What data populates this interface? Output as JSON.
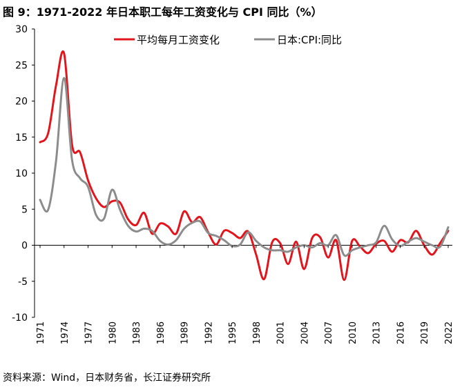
{
  "title": "图 9：1971-2022 年日本职工每年工资变化与 CPI 同比（%）",
  "source": "资料来源：Wind，日本财务省，长江证券研究所",
  "colors": {
    "wage": "#e3141b",
    "cpi": "#8c8c8c",
    "axis": "#000000"
  },
  "chart_data": {
    "type": "line",
    "title": "1971-2022 年日本职工每年工资变化与 CPI 同比（%）",
    "xlabel": "",
    "ylabel": "",
    "ylim": [
      -10,
      30
    ],
    "yticks": [
      "30",
      "25",
      "20",
      "15",
      "10",
      "5",
      "0",
      "-5",
      "-10"
    ],
    "xticks": [
      "1971",
      "1974",
      "1977",
      "1980",
      "1983",
      "1986",
      "1989",
      "1992",
      "1995",
      "1998",
      "2001",
      "2004",
      "2007",
      "2010",
      "2013",
      "2016",
      "2019",
      "2022"
    ],
    "legend_position": "top-center",
    "x": [
      1971,
      1972,
      1973,
      1974,
      1975,
      1976,
      1977,
      1978,
      1979,
      1980,
      1981,
      1982,
      1983,
      1984,
      1985,
      1986,
      1987,
      1988,
      1989,
      1990,
      1991,
      1992,
      1993,
      1994,
      1995,
      1996,
      1997,
      1998,
      1999,
      2000,
      2001,
      2002,
      2003,
      2004,
      2005,
      2006,
      2007,
      2008,
      2009,
      2010,
      2011,
      2012,
      2013,
      2014,
      2015,
      2016,
      2017,
      2018,
      2019,
      2020,
      2021,
      2022
    ],
    "series": [
      {
        "name": "平均每月工资变化",
        "values": [
          14.3,
          15.5,
          22.2,
          26.6,
          13.9,
          12.9,
          9.0,
          6.5,
          5.3,
          6.1,
          5.9,
          3.6,
          2.8,
          4.5,
          1.6,
          3.0,
          2.6,
          1.6,
          4.7,
          3.2,
          3.9,
          1.8,
          0.1,
          2.0,
          1.7,
          1.0,
          1.9,
          -1.3,
          -4.7,
          0.4,
          0.3,
          -2.6,
          0.5,
          -3.3,
          1.0,
          1.1,
          -1.7,
          0.7,
          -4.8,
          0.6,
          -0.2,
          -1.1,
          0.2,
          0.6,
          -0.9,
          0.7,
          0.4,
          2.0,
          0.0,
          -1.3,
          0.3,
          2.0
        ]
      },
      {
        "name": "日本:CPI:同比",
        "values": [
          6.3,
          4.9,
          11.7,
          23.2,
          11.8,
          9.3,
          8.1,
          4.2,
          3.7,
          7.7,
          4.9,
          2.7,
          1.9,
          2.3,
          2.0,
          0.6,
          0.1,
          0.7,
          2.3,
          3.1,
          3.3,
          1.7,
          1.3,
          0.7,
          -0.1,
          0.1,
          1.8,
          0.6,
          -0.3,
          -0.7,
          -0.7,
          -0.9,
          -0.3,
          0.0,
          -0.3,
          0.3,
          0.0,
          1.4,
          -1.4,
          -0.7,
          -0.3,
          0.0,
          0.4,
          2.7,
          0.8,
          -0.1,
          0.5,
          1.0,
          0.5,
          0.0,
          -0.2,
          2.5
        ]
      }
    ]
  }
}
